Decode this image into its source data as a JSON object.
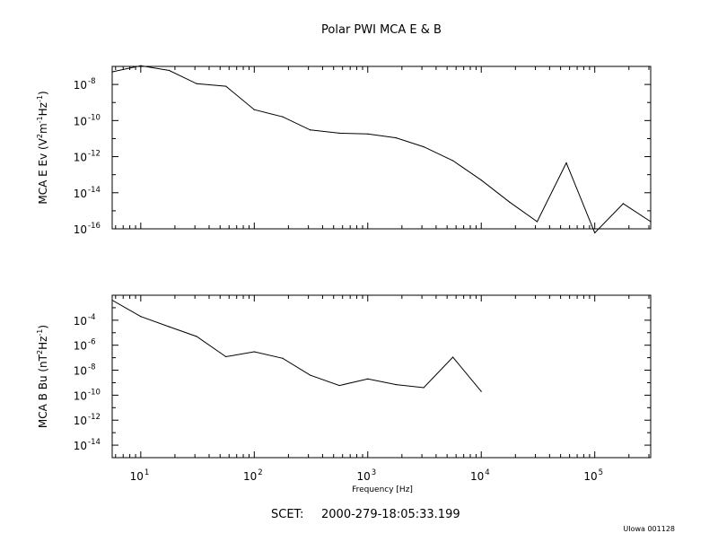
{
  "header": {
    "title": "Polar PWI MCA E & B"
  },
  "footer": {
    "scet_label": "SCET:",
    "scet_value": "2000-279-18:05:33.199",
    "credit": "UIowa 001128"
  },
  "colors": {
    "background": "#ffffff",
    "line": "#000000"
  },
  "chart_data": [
    {
      "type": "line",
      "title": "",
      "xlabel": "",
      "ylabel": "MCA E Ev (V²m⁻¹Hz⁻¹)",
      "ylabel_parts": {
        "prefix": "MCA E Ev (V",
        "sup1": "2",
        "mid1": "m",
        "sup2": "-1",
        "mid2": "Hz",
        "sup3": "-1",
        "suffix": ")"
      },
      "x_scale": "log",
      "y_scale": "log",
      "xlim": [
        5.6,
        311000
      ],
      "ylim": [
        1e-16,
        1e-07
      ],
      "y_ticks": [
        {
          "base": "10",
          "exp": "-8"
        },
        {
          "base": "10",
          "exp": "-10"
        },
        {
          "base": "10",
          "exp": "-12"
        },
        {
          "base": "10",
          "exp": "-14"
        },
        {
          "base": "10",
          "exp": "-16"
        }
      ],
      "y_tick_values": [
        1e-08,
        1e-10,
        1e-12,
        1e-14,
        1e-16
      ],
      "grid": false,
      "x": [
        5.6,
        10,
        17.8,
        31.1,
        56.2,
        100,
        178,
        311,
        562,
        1000,
        1780,
        3110,
        5620,
        10000,
        17800,
        31100,
        56200,
        100000,
        178000,
        311000
      ],
      "series": [
        {
          "values": [
            5e-08,
            1.1e-07,
            6e-08,
            1.1e-08,
            8e-09,
            4e-10,
            1.6e-10,
            3e-11,
            2e-11,
            1.8e-11,
            1.1e-11,
            3.5e-12,
            6e-13,
            5e-14,
            3e-15,
            2.5e-16,
            4.5e-13,
            6e-17,
            2.5e-15,
            2.5e-16
          ]
        }
      ]
    },
    {
      "type": "line",
      "title": "",
      "xlabel": "Frequency [Hz]",
      "ylabel": "MCA B Bu (nT²Hz⁻¹)",
      "ylabel_parts": {
        "prefix": "MCA B Bu (nT",
        "sup1": "2",
        "mid1": "Hz",
        "sup2": "-1",
        "suffix": ")"
      },
      "x_scale": "log",
      "y_scale": "log",
      "xlim": [
        5.6,
        311000
      ],
      "ylim": [
        1e-15,
        0.01
      ],
      "x_ticks": [
        {
          "base": "10",
          "exp": "1"
        },
        {
          "base": "10",
          "exp": "2"
        },
        {
          "base": "10",
          "exp": "3"
        },
        {
          "base": "10",
          "exp": "4"
        },
        {
          "base": "10",
          "exp": "5"
        }
      ],
      "x_tick_values": [
        10,
        100,
        1000,
        10000,
        100000
      ],
      "y_ticks": [
        {
          "base": "10",
          "exp": "-4"
        },
        {
          "base": "10",
          "exp": "-6"
        },
        {
          "base": "10",
          "exp": "-8"
        },
        {
          "base": "10",
          "exp": "-10"
        },
        {
          "base": "10",
          "exp": "-12"
        },
        {
          "base": "10",
          "exp": "-14"
        }
      ],
      "y_tick_values": [
        0.0001,
        1e-06,
        1e-08,
        1e-10,
        1e-12,
        1e-14
      ],
      "grid": false,
      "x": [
        5.6,
        10,
        17.8,
        31.1,
        56.2,
        100,
        178,
        311,
        562,
        1000,
        1780,
        3110,
        5620,
        10000
      ],
      "series": [
        {
          "values": [
            0.004,
            0.0002,
            3e-05,
            5e-06,
            1.2e-07,
            3e-07,
            9e-08,
            4e-09,
            6e-10,
            2e-09,
            7e-10,
            4e-10,
            1.1e-07,
            2e-10
          ]
        }
      ]
    }
  ]
}
